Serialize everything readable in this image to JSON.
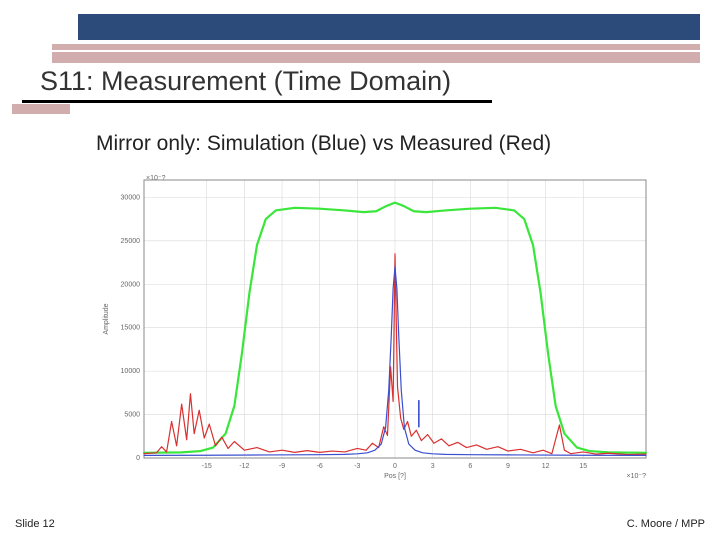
{
  "header": {
    "title": "S11: Measurement (Time Domain)",
    "subtitle": "Mirror only: Simulation (Blue) vs Measured (Red)"
  },
  "footer": {
    "left": "Slide 12",
    "right": "C. Moore / MPP"
  },
  "chart": {
    "type": "line",
    "background_color": "#ffffff",
    "plot_border_color": "#888888",
    "grid_color": "#d9d9d9",
    "font_size_axis": 7,
    "x": {
      "label": "Pos [?]",
      "min": -20,
      "max": 20,
      "ticks": [
        -15,
        -12,
        -9,
        -6,
        -3,
        0,
        3,
        6,
        9,
        12,
        15
      ],
      "exponent_note": "×10⁻?"
    },
    "y": {
      "label": "Amplitude",
      "min": 0,
      "max": 32000,
      "ticks": [
        0,
        5000,
        10000,
        15000,
        20000,
        25000,
        30000
      ],
      "exponent_note": "×10⁻?"
    },
    "series": [
      {
        "name": "window",
        "color": "#39e639",
        "line_width": 2.2,
        "data": [
          [
            -20,
            600
          ],
          [
            -17,
            650
          ],
          [
            -15.5,
            800
          ],
          [
            -14.5,
            1200
          ],
          [
            -13.5,
            2800
          ],
          [
            -12.8,
            6000
          ],
          [
            -12.2,
            12000
          ],
          [
            -11.6,
            19000
          ],
          [
            -11,
            24500
          ],
          [
            -10.3,
            27500
          ],
          [
            -9.5,
            28500
          ],
          [
            -8,
            28800
          ],
          [
            -6,
            28700
          ],
          [
            -4,
            28500
          ],
          [
            -2.5,
            28300
          ],
          [
            -1.5,
            28400
          ],
          [
            -0.7,
            29000
          ],
          [
            0,
            29400
          ],
          [
            0.7,
            29000
          ],
          [
            1.5,
            28400
          ],
          [
            2.5,
            28300
          ],
          [
            4,
            28500
          ],
          [
            6,
            28700
          ],
          [
            8,
            28800
          ],
          [
            9.5,
            28500
          ],
          [
            10.3,
            27500
          ],
          [
            11,
            24500
          ],
          [
            11.6,
            19000
          ],
          [
            12.2,
            12000
          ],
          [
            12.8,
            6000
          ],
          [
            13.5,
            2800
          ],
          [
            14.5,
            1200
          ],
          [
            15.5,
            800
          ],
          [
            17,
            650
          ],
          [
            20,
            600
          ]
        ]
      },
      {
        "name": "measured",
        "color": "#d93030",
        "line_width": 1.2,
        "data": [
          [
            -20,
            500
          ],
          [
            -19,
            600
          ],
          [
            -18.6,
            1300
          ],
          [
            -18.2,
            700
          ],
          [
            -17.8,
            4200
          ],
          [
            -17.4,
            1400
          ],
          [
            -17,
            6200
          ],
          [
            -16.6,
            2100
          ],
          [
            -16.3,
            7400
          ],
          [
            -16,
            2800
          ],
          [
            -15.6,
            5500
          ],
          [
            -15.2,
            2300
          ],
          [
            -14.8,
            3900
          ],
          [
            -14.3,
            1400
          ],
          [
            -13.8,
            2400
          ],
          [
            -13.3,
            1100
          ],
          [
            -12.8,
            1900
          ],
          [
            -12,
            900
          ],
          [
            -11,
            1200
          ],
          [
            -10,
            700
          ],
          [
            -9,
            900
          ],
          [
            -8,
            650
          ],
          [
            -7,
            850
          ],
          [
            -6,
            650
          ],
          [
            -5,
            800
          ],
          [
            -4,
            700
          ],
          [
            -3,
            1100
          ],
          [
            -2.3,
            900
          ],
          [
            -1.8,
            1700
          ],
          [
            -1.3,
            1200
          ],
          [
            -0.9,
            3600
          ],
          [
            -0.6,
            2600
          ],
          [
            -0.35,
            10500
          ],
          [
            -0.15,
            6500
          ],
          [
            0,
            23500
          ],
          [
            0.2,
            8200
          ],
          [
            0.45,
            4600
          ],
          [
            0.7,
            3300
          ],
          [
            1,
            4200
          ],
          [
            1.3,
            2500
          ],
          [
            1.7,
            3200
          ],
          [
            2.1,
            2000
          ],
          [
            2.6,
            2700
          ],
          [
            3.1,
            1700
          ],
          [
            3.7,
            2200
          ],
          [
            4.3,
            1400
          ],
          [
            5,
            1800
          ],
          [
            5.7,
            1200
          ],
          [
            6.5,
            1500
          ],
          [
            7.3,
            1000
          ],
          [
            8.2,
            1300
          ],
          [
            9,
            800
          ],
          [
            10,
            1000
          ],
          [
            11,
            600
          ],
          [
            11.8,
            900
          ],
          [
            12.5,
            500
          ],
          [
            13.1,
            3800
          ],
          [
            13.5,
            900
          ],
          [
            14,
            500
          ],
          [
            15,
            700
          ],
          [
            16,
            450
          ],
          [
            17,
            550
          ],
          [
            18.5,
            400
          ],
          [
            20,
            450
          ]
        ]
      },
      {
        "name": "simulation",
        "color": "#3a4fcf",
        "line_width": 1.2,
        "data": [
          [
            -20,
            300
          ],
          [
            -15,
            320
          ],
          [
            -10,
            350
          ],
          [
            -6,
            380
          ],
          [
            -4,
            420
          ],
          [
            -3,
            480
          ],
          [
            -2.2,
            600
          ],
          [
            -1.6,
            900
          ],
          [
            -1.1,
            1600
          ],
          [
            -0.75,
            3500
          ],
          [
            -0.5,
            7800
          ],
          [
            -0.3,
            14000
          ],
          [
            -0.15,
            19500
          ],
          [
            0,
            22000
          ],
          [
            0.15,
            19500
          ],
          [
            0.3,
            14000
          ],
          [
            0.5,
            7800
          ],
          [
            0.75,
            3500
          ],
          [
            1.1,
            1600
          ],
          [
            1.6,
            900
          ],
          [
            2.2,
            600
          ],
          [
            3,
            480
          ],
          [
            4,
            420
          ],
          [
            6,
            380
          ],
          [
            10,
            350
          ],
          [
            15,
            320
          ],
          [
            20,
            300
          ]
        ]
      },
      {
        "name": "blue-marker",
        "color": "#3a4fcf",
        "line_width": 1.6,
        "data": [
          [
            1.9,
            3600
          ],
          [
            1.9,
            6600
          ]
        ]
      }
    ]
  }
}
